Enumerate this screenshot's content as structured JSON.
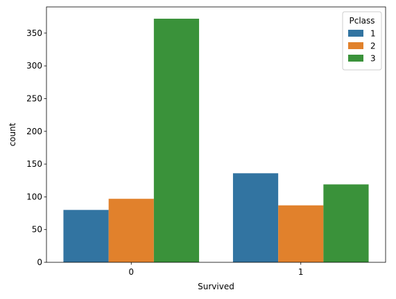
{
  "chart_data": {
    "type": "bar",
    "xlabel": "Survived",
    "ylabel": "count",
    "categories": [
      "0",
      "1"
    ],
    "ylim": [
      0,
      390
    ],
    "yticks": [
      0,
      50,
      100,
      150,
      200,
      250,
      300,
      350
    ],
    "grid": false,
    "legend": {
      "title": "Pclass",
      "placement": "top-right"
    },
    "series": [
      {
        "name": "1",
        "color": "#3274a1",
        "values": [
          80,
          136
        ]
      },
      {
        "name": "2",
        "color": "#e1812c",
        "values": [
          97,
          87
        ]
      },
      {
        "name": "3",
        "color": "#3a923a",
        "values": [
          372,
          119
        ]
      }
    ]
  }
}
